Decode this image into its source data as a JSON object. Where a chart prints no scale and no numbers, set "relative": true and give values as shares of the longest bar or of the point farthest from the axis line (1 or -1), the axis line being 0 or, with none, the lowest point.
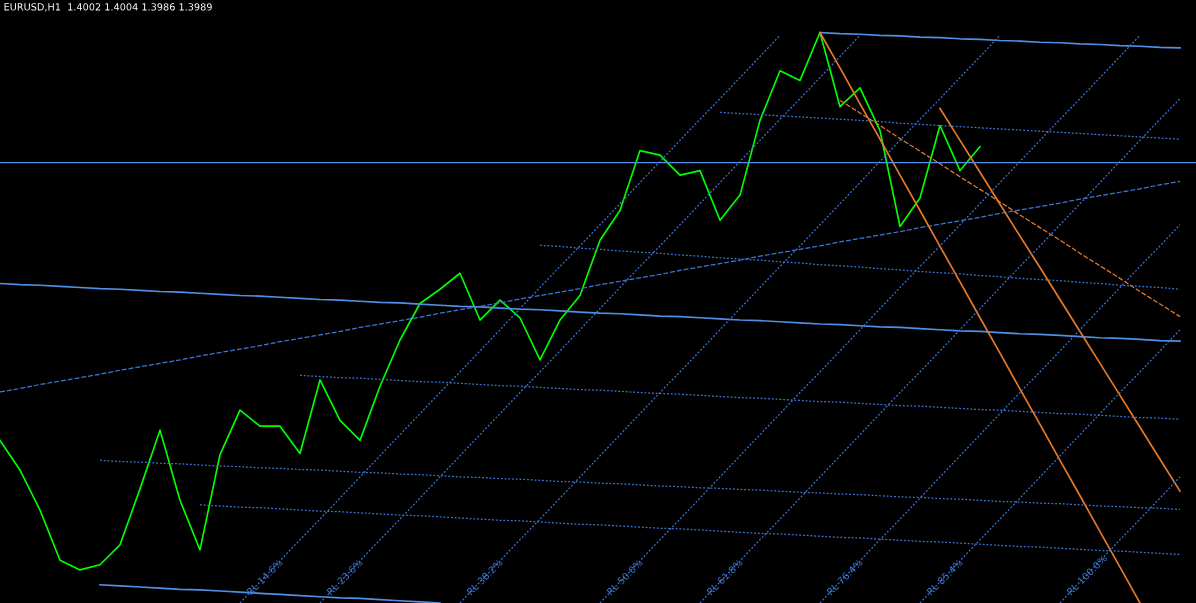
{
  "chart_data": {
    "type": "line",
    "title": "EURUSD,H1  1.4002 1.4004 1.3986 1.3989",
    "relative": true,
    "categories": [
      null,
      null,
      null,
      null,
      null,
      null,
      null,
      null,
      null,
      null,
      null,
      null,
      null,
      null,
      null,
      null,
      null,
      null,
      null,
      null,
      null,
      null,
      null,
      null,
      null,
      null,
      null,
      null,
      null,
      null,
      null,
      null,
      null,
      null,
      null,
      null,
      null,
      null,
      null,
      null,
      null,
      null,
      null,
      null,
      null,
      null,
      null,
      null,
      null,
      null,
      null,
      null,
      null,
      null,
      null,
      null,
      null,
      null,
      null,
      null
    ],
    "series": [
      {
        "color": "#00ff00",
        "values": [
          0.285,
          0.233,
          0.163,
          0.075,
          0.058,
          0.067,
          0.102,
          0.2,
          0.303,
          0.18,
          0.093,
          0.26,
          0.338,
          0.31,
          0.31,
          0.262,
          0.391,
          0.32,
          0.285,
          0.38,
          0.461,
          0.525,
          0.55,
          0.578,
          0.496,
          0.531,
          0.5,
          0.426,
          0.496,
          0.539,
          0.636,
          0.688,
          0.793,
          0.785,
          0.75,
          0.758,
          0.671,
          0.715,
          0.846,
          0.933,
          0.916,
          1,
          0.87,
          0.903,
          0.828,
          0.66,
          0.71,
          0.837,
          0.758,
          0.8,
          null,
          null,
          null,
          null,
          null,
          null,
          null,
          null,
          null,
          null
        ]
      },
      {
        "color": "#4f8fe6",
        "values": [
          null,
          null,
          null,
          null,
          null,
          null,
          null,
          null,
          null,
          null,
          null,
          null,
          null,
          null,
          null,
          null,
          null,
          null,
          null,
          null,
          null,
          null,
          null,
          null,
          null,
          null,
          null,
          null,
          null,
          null,
          null,
          null,
          null,
          null,
          null,
          null,
          null,
          null,
          null,
          null,
          null,
          1,
          0.998,
          0.997,
          0.995,
          0.994,
          0.992,
          0.991,
          0.989,
          0.988,
          0.986,
          0.985,
          0.983,
          0.982,
          0.98,
          0.979,
          0.977,
          0.976,
          0.974,
          0.973
        ]
      },
      {
        "color": "#4f8fe6",
        "values": [
          0.56,
          0.558,
          0.557,
          0.555,
          0.553,
          0.551,
          0.55,
          0.548,
          0.546,
          0.545,
          0.543,
          0.541,
          0.539,
          0.538,
          0.536,
          0.534,
          0.532,
          0.531,
          0.529,
          0.527,
          0.526,
          0.524,
          0.522,
          0.52,
          0.519,
          0.517,
          0.515,
          0.514,
          0.512,
          0.51,
          0.508,
          0.507,
          0.505,
          0.503,
          0.502,
          0.5,
          0.498,
          0.496,
          0.495,
          0.493,
          0.491,
          0.489,
          0.488,
          0.486,
          0.484,
          0.483,
          0.481,
          0.479,
          0.477,
          0.476,
          0.474,
          0.472,
          0.471,
          0.469,
          0.467,
          0.465,
          0.464,
          0.462,
          0.46,
          0.459
        ]
      },
      {
        "color": "#4f8fe6",
        "values": [
          null,
          null,
          null,
          null,
          null,
          0.032,
          0.03,
          0.028,
          0.026,
          0.024,
          0.023,
          0.021,
          0.019,
          0.017,
          0.015,
          0.013,
          0.011,
          0.009,
          0.008,
          0.006,
          0.004,
          0.002,
          0,
          null,
          null,
          null,
          null,
          null,
          null,
          null,
          null,
          null,
          null,
          null,
          null,
          null,
          null,
          null,
          null,
          null,
          null,
          null,
          null,
          null,
          null,
          null,
          null,
          null,
          null,
          null,
          null,
          null,
          null,
          null,
          null,
          null,
          null,
          null,
          null,
          null
        ]
      },
      {
        "color": "#3a78d8",
        "line_style": "dashed",
        "values": [
          0.37,
          0.376,
          0.383,
          0.389,
          0.395,
          0.401,
          0.408,
          0.414,
          0.42,
          0.426,
          0.433,
          0.439,
          0.445,
          0.451,
          0.458,
          0.464,
          0.47,
          0.476,
          0.483,
          0.489,
          0.495,
          0.501,
          0.508,
          0.514,
          0.52,
          0.526,
          0.533,
          0.539,
          0.545,
          0.551,
          0.558,
          0.564,
          0.57,
          0.576,
          0.583,
          0.589,
          0.595,
          0.601,
          0.608,
          0.614,
          0.62,
          0.626,
          0.633,
          0.639,
          0.645,
          0.651,
          0.658,
          0.664,
          0.67,
          0.676,
          0.683,
          0.689,
          0.695,
          0.701,
          0.708,
          0.714,
          0.72,
          0.726,
          0.733,
          0.739
        ]
      },
      {
        "color": "#e87a2a",
        "values": [
          null,
          null,
          null,
          null,
          null,
          null,
          null,
          null,
          null,
          null,
          null,
          null,
          null,
          null,
          null,
          null,
          null,
          null,
          null,
          null,
          null,
          null,
          null,
          null,
          null,
          null,
          null,
          null,
          null,
          null,
          null,
          null,
          null,
          null,
          null,
          null,
          null,
          null,
          null,
          null,
          null,
          1,
          0.938,
          0.875,
          0.813,
          0.75,
          0.688,
          0.625,
          0.563,
          0.5,
          0.438,
          0.375,
          0.313,
          0.25,
          0.188,
          0.125,
          0.063,
          0,
          null,
          null
        ]
      },
      {
        "color": "#e87a2a",
        "values": [
          null,
          null,
          null,
          null,
          null,
          null,
          null,
          null,
          null,
          null,
          null,
          null,
          null,
          null,
          null,
          null,
          null,
          null,
          null,
          null,
          null,
          null,
          null,
          null,
          null,
          null,
          null,
          null,
          null,
          null,
          null,
          null,
          null,
          null,
          null,
          null,
          null,
          null,
          null,
          null,
          null,
          null,
          null,
          null,
          null,
          null,
          null,
          0.867,
          0.811,
          0.755,
          0.699,
          0.643,
          0.588,
          0.532,
          0.476,
          0.42,
          0.364,
          0.308,
          0.252,
          0.196
        ]
      },
      {
        "color": "#e87a2a",
        "line_style": "dashed",
        "values": [
          null,
          null,
          null,
          null,
          null,
          null,
          null,
          null,
          null,
          null,
          null,
          null,
          null,
          null,
          null,
          null,
          null,
          null,
          null,
          null,
          null,
          null,
          null,
          null,
          null,
          null,
          null,
          null,
          null,
          null,
          null,
          null,
          null,
          null,
          null,
          null,
          null,
          null,
          null,
          null,
          null,
          null,
          0.881,
          0.859,
          0.837,
          0.814,
          0.792,
          0.77,
          0.747,
          0.725,
          0.703,
          0.68,
          0.658,
          0.636,
          0.613,
          0.591,
          0.569,
          0.546,
          0.524,
          0.502
        ]
      },
      {
        "color": "#3a78d8",
        "line_style": "dotted",
        "values": [
          null,
          null,
          null,
          null,
          null,
          null,
          null,
          null,
          null,
          null,
          null,
          null,
          null,
          null,
          null,
          null,
          null,
          null,
          null,
          null,
          null,
          null,
          null,
          null,
          null,
          null,
          null,
          null,
          null,
          null,
          null,
          null,
          null,
          null,
          null,
          null,
          0.86,
          0.858,
          0.856,
          0.854,
          0.852,
          0.85,
          0.848,
          0.846,
          0.844,
          0.841,
          0.839,
          0.837,
          0.835,
          0.833,
          0.831,
          0.829,
          0.827,
          0.825,
          0.823,
          0.821,
          0.819,
          0.817,
          0.815,
          0.813
        ]
      },
      {
        "color": "#3a78d8",
        "line_style": "dotted",
        "values": [
          null,
          null,
          null,
          null,
          null,
          null,
          null,
          null,
          null,
          null,
          null,
          null,
          null,
          null,
          null,
          null,
          null,
          null,
          null,
          null,
          null,
          null,
          null,
          null,
          null,
          null,
          null,
          0.627,
          0.625,
          0.622,
          0.62,
          0.617,
          0.615,
          0.613,
          0.61,
          0.608,
          0.605,
          0.603,
          0.601,
          0.598,
          0.596,
          0.593,
          0.591,
          0.589,
          0.586,
          0.584,
          0.581,
          0.579,
          0.577,
          0.574,
          0.572,
          0.569,
          0.567,
          0.565,
          0.562,
          0.56,
          0.557,
          0.555,
          0.553,
          0.55
        ]
      },
      {
        "color": "#3a78d8",
        "line_style": "dotted",
        "values": [
          null,
          null,
          null,
          null,
          null,
          null,
          null,
          null,
          null,
          null,
          null,
          null,
          null,
          null,
          null,
          0.399,
          0.397,
          0.395,
          0.394,
          0.392,
          0.39,
          0.388,
          0.387,
          0.385,
          0.383,
          0.381,
          0.38,
          0.378,
          0.376,
          0.374,
          0.373,
          0.371,
          0.369,
          0.367,
          0.366,
          0.364,
          0.362,
          0.36,
          0.359,
          0.357,
          0.355,
          0.353,
          0.352,
          0.35,
          0.348,
          0.346,
          0.345,
          0.343,
          0.341,
          0.339,
          0.338,
          0.336,
          0.334,
          0.332,
          0.331,
          0.329,
          0.327,
          0.325,
          0.324,
          0.322
        ]
      },
      {
        "color": "#3a78d8",
        "line_style": "dotted",
        "values": [
          null,
          null,
          null,
          null,
          null,
          0.25,
          0.248,
          0.247,
          0.245,
          0.244,
          0.242,
          0.24,
          0.239,
          0.237,
          0.236,
          0.234,
          0.233,
          0.231,
          0.229,
          0.228,
          0.226,
          0.225,
          0.223,
          0.221,
          0.22,
          0.218,
          0.217,
          0.215,
          0.213,
          0.212,
          0.21,
          0.209,
          0.207,
          0.205,
          0.204,
          0.202,
          0.201,
          0.199,
          0.198,
          0.196,
          0.194,
          0.193,
          0.191,
          0.19,
          0.188,
          0.186,
          0.185,
          0.183,
          0.182,
          0.18,
          0.178,
          0.177,
          0.175,
          0.174,
          0.172,
          0.17,
          0.169,
          0.167,
          0.166,
          0.164
        ]
      },
      {
        "color": "#3a78d8",
        "line_style": "dotted",
        "values": [
          null,
          null,
          null,
          null,
          null,
          null,
          null,
          null,
          null,
          null,
          0.172,
          0.17,
          0.168,
          0.167,
          0.165,
          0.163,
          0.161,
          0.16,
          0.158,
          0.156,
          0.154,
          0.153,
          0.151,
          0.149,
          0.147,
          0.145,
          0.144,
          0.142,
          0.14,
          0.138,
          0.137,
          0.135,
          0.133,
          0.131,
          0.13,
          0.128,
          0.126,
          0.124,
          0.122,
          0.121,
          0.119,
          0.117,
          0.115,
          0.114,
          0.112,
          0.11,
          0.108,
          0.107,
          0.105,
          0.103,
          0.101,
          0.099,
          0.098,
          0.096,
          0.094,
          0.092,
          0.091,
          0.089,
          0.087,
          0.085
        ]
      },
      {
        "name": "RL 14.6%",
        "color": "#3a78d8",
        "line_style": "dotted",
        "values": [
          null,
          null,
          null,
          null,
          null,
          null,
          null,
          null,
          null,
          null,
          null,
          null,
          0,
          0.037,
          0.074,
          0.111,
          0.147,
          0.184,
          0.221,
          0.258,
          0.295,
          0.332,
          0.369,
          0.405,
          0.442,
          0.479,
          0.516,
          0.553,
          0.59,
          0.626,
          0.663,
          0.7,
          0.737,
          0.774,
          0.811,
          0.848,
          0.884,
          0.921,
          0.958,
          0.995,
          null,
          null,
          null,
          null,
          null,
          null,
          null,
          null,
          null,
          null,
          null,
          null,
          null,
          null,
          null,
          null,
          null,
          null,
          null,
          null
        ]
      },
      {
        "name": "RL 23.6%",
        "color": "#3a78d8",
        "line_style": "dotted",
        "values": [
          null,
          null,
          null,
          null,
          null,
          null,
          null,
          null,
          null,
          null,
          null,
          null,
          null,
          null,
          null,
          null,
          0,
          0.037,
          0.074,
          0.111,
          0.147,
          0.184,
          0.221,
          0.258,
          0.295,
          0.332,
          0.369,
          0.405,
          0.442,
          0.479,
          0.516,
          0.553,
          0.59,
          0.626,
          0.663,
          0.7,
          0.737,
          0.774,
          0.811,
          0.848,
          0.884,
          0.921,
          0.958,
          0.995,
          null,
          null,
          null,
          null,
          null,
          null,
          null,
          null,
          null,
          null,
          null,
          null,
          null,
          null,
          null,
          null
        ]
      },
      {
        "name": "RL 38.2%",
        "color": "#3a78d8",
        "line_style": "dotted",
        "values": [
          null,
          null,
          null,
          null,
          null,
          null,
          null,
          null,
          null,
          null,
          null,
          null,
          null,
          null,
          null,
          null,
          null,
          null,
          null,
          null,
          null,
          null,
          null,
          0,
          0.037,
          0.074,
          0.111,
          0.147,
          0.184,
          0.221,
          0.258,
          0.295,
          0.332,
          0.369,
          0.405,
          0.442,
          0.479,
          0.516,
          0.553,
          0.59,
          0.626,
          0.663,
          0.7,
          0.737,
          0.774,
          0.811,
          0.848,
          0.884,
          0.921,
          0.958,
          0.995,
          null,
          null,
          null,
          null,
          null,
          null,
          null,
          null,
          null
        ]
      },
      {
        "name": "RL 50.0%",
        "color": "#3a78d8",
        "line_style": "dotted",
        "values": [
          null,
          null,
          null,
          null,
          null,
          null,
          null,
          null,
          null,
          null,
          null,
          null,
          null,
          null,
          null,
          null,
          null,
          null,
          null,
          null,
          null,
          null,
          null,
          null,
          null,
          null,
          null,
          null,
          null,
          null,
          0,
          0.037,
          0.074,
          0.111,
          0.147,
          0.184,
          0.221,
          0.258,
          0.295,
          0.332,
          0.369,
          0.405,
          0.442,
          0.479,
          0.516,
          0.553,
          0.59,
          0.626,
          0.663,
          0.7,
          0.737,
          0.774,
          0.811,
          0.848,
          0.884,
          0.921,
          0.958,
          0.995,
          null,
          null
        ]
      },
      {
        "name": "RL 61.8%",
        "color": "#3a78d8",
        "line_style": "dotted",
        "values": [
          null,
          null,
          null,
          null,
          null,
          null,
          null,
          null,
          null,
          null,
          null,
          null,
          null,
          null,
          null,
          null,
          null,
          null,
          null,
          null,
          null,
          null,
          null,
          null,
          null,
          null,
          null,
          null,
          null,
          null,
          null,
          null,
          null,
          null,
          null,
          0,
          0.037,
          0.074,
          0.111,
          0.147,
          0.184,
          0.221,
          0.258,
          0.295,
          0.332,
          0.369,
          0.405,
          0.442,
          0.479,
          0.516,
          0.553,
          0.59,
          0.626,
          0.663,
          0.7,
          0.737,
          0.774,
          0.811,
          0.848,
          0.884
        ]
      },
      {
        "name": "RL 76.4%",
        "color": "#3a78d8",
        "line_style": "dotted",
        "values": [
          null,
          null,
          null,
          null,
          null,
          null,
          null,
          null,
          null,
          null,
          null,
          null,
          null,
          null,
          null,
          null,
          null,
          null,
          null,
          null,
          null,
          null,
          null,
          null,
          null,
          null,
          null,
          null,
          null,
          null,
          null,
          null,
          null,
          null,
          null,
          null,
          null,
          null,
          null,
          null,
          null,
          0,
          0.037,
          0.074,
          0.111,
          0.147,
          0.184,
          0.221,
          0.258,
          0.295,
          0.332,
          0.369,
          0.405,
          0.442,
          0.479,
          0.516,
          0.553,
          0.59,
          0.626,
          0.663
        ]
      },
      {
        "name": "RL 85.4%",
        "color": "#3a78d8",
        "line_style": "dotted",
        "values": [
          null,
          null,
          null,
          null,
          null,
          null,
          null,
          null,
          null,
          null,
          null,
          null,
          null,
          null,
          null,
          null,
          null,
          null,
          null,
          null,
          null,
          null,
          null,
          null,
          null,
          null,
          null,
          null,
          null,
          null,
          null,
          null,
          null,
          null,
          null,
          null,
          null,
          null,
          null,
          null,
          null,
          null,
          null,
          null,
          null,
          null,
          0,
          0.037,
          0.074,
          0.111,
          0.147,
          0.184,
          0.221,
          0.258,
          0.295,
          0.332,
          0.369,
          0.405,
          0.442,
          0.479
        ]
      },
      {
        "name": "RL 100.0%",
        "color": "#3a78d8",
        "line_style": "dotted",
        "values": [
          null,
          null,
          null,
          null,
          null,
          null,
          null,
          null,
          null,
          null,
          null,
          null,
          null,
          null,
          null,
          null,
          null,
          null,
          null,
          null,
          null,
          null,
          null,
          null,
          null,
          null,
          null,
          null,
          null,
          null,
          null,
          null,
          null,
          null,
          null,
          null,
          null,
          null,
          null,
          null,
          null,
          null,
          null,
          null,
          null,
          null,
          null,
          null,
          null,
          null,
          null,
          null,
          null,
          0,
          0.037,
          0.074,
          0.111,
          0.147,
          0.184,
          0.221
        ]
      }
    ],
    "ref_lines": [
      {
        "axis": "y",
        "value": 0.772,
        "color": "#4f8fe6",
        "line_style": "solid"
      }
    ]
  }
}
